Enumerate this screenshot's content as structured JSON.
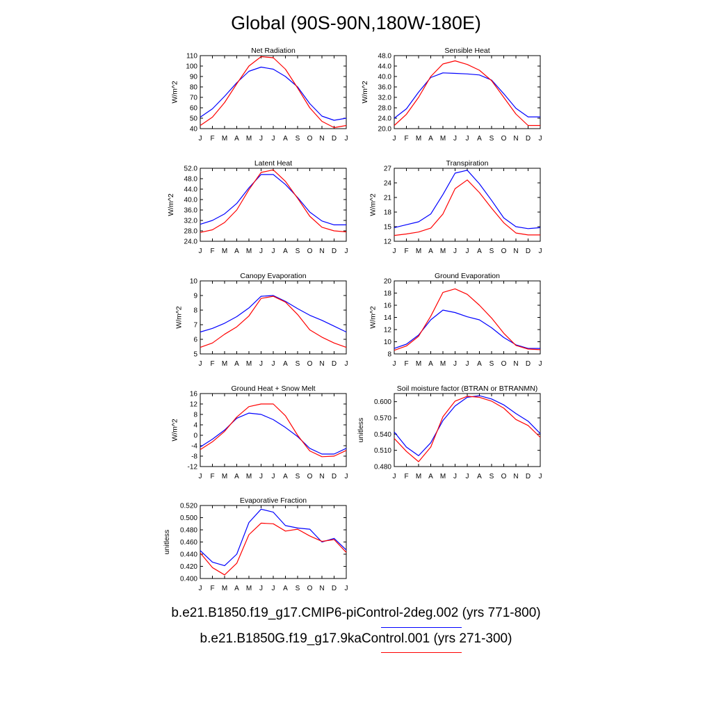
{
  "title": "Global (90S-90N,180W-180E)",
  "months": [
    "J",
    "F",
    "M",
    "A",
    "M",
    "J",
    "J",
    "A",
    "S",
    "O",
    "N",
    "D",
    "J"
  ],
  "legend": [
    {
      "label": "b.e21.B1850.f19_g17.CMIP6-piControl-2deg.002 (yrs 771-800)",
      "color": "#0000ff"
    },
    {
      "label": "b.e21.B1850G.f19_g17.9kaControl.001 (yrs 271-300)",
      "color": "#ff0000"
    }
  ],
  "chart_data": [
    {
      "type": "line",
      "title": "Net Radiation",
      "ylabel": "W/m^2",
      "ylim": [
        40,
        110
      ],
      "yticks": [
        40,
        50,
        60,
        70,
        80,
        90,
        100,
        110
      ],
      "yticklabels": [
        "40",
        "50",
        "60",
        "70",
        "80",
        "90",
        "100",
        "110"
      ],
      "series": [
        {
          "color": "#0000ff",
          "values": [
            51,
            59,
            71,
            84,
            95,
            99,
            97,
            90,
            80,
            64,
            52,
            48,
            50
          ]
        },
        {
          "color": "#ff0000",
          "values": [
            43,
            51,
            65,
            83,
            100,
            109,
            108,
            97,
            79,
            60,
            47,
            41,
            43
          ]
        }
      ]
    },
    {
      "type": "line",
      "title": "Sensible Heat",
      "ylabel": "W/m^2",
      "ylim": [
        20,
        48
      ],
      "yticks": [
        20,
        24,
        28,
        32,
        36,
        40,
        44,
        48
      ],
      "yticklabels": [
        "20.0",
        "24.0",
        "28.0",
        "32.0",
        "36.0",
        "40.0",
        "44.0",
        "48.0"
      ],
      "series": [
        {
          "color": "#0000ff",
          "values": [
            24,
            27.6,
            34,
            39.6,
            41.4,
            41.2,
            41,
            40.6,
            38.6,
            33.4,
            27.8,
            24.5,
            24.5
          ]
        },
        {
          "color": "#ff0000",
          "values": [
            21.2,
            25.5,
            32,
            40,
            44.8,
            46,
            44.6,
            42.4,
            38.4,
            32,
            25.6,
            21.2,
            21.2
          ]
        }
      ]
    },
    {
      "type": "line",
      "title": "Latent Heat",
      "ylabel": "W/m^2",
      "ylim": [
        24,
        52
      ],
      "yticks": [
        24,
        28,
        32,
        36,
        40,
        44,
        48,
        52
      ],
      "yticklabels": [
        "24.0",
        "28.0",
        "32.0",
        "36.0",
        "40.0",
        "44.0",
        "48.0",
        "52.0"
      ],
      "series": [
        {
          "color": "#0000ff",
          "values": [
            30.5,
            32,
            34.5,
            38.5,
            44.5,
            49.6,
            49.6,
            45.8,
            40.8,
            35.2,
            31.8,
            30.3,
            30.3
          ]
        },
        {
          "color": "#ff0000",
          "values": [
            27.4,
            28.4,
            31.2,
            36,
            43.8,
            50.4,
            51.4,
            47,
            40.5,
            33.6,
            29.4,
            28,
            27.6
          ]
        }
      ]
    },
    {
      "type": "line",
      "title": "Transpiration",
      "ylabel": "W/m^2",
      "ylim": [
        12,
        27
      ],
      "yticks": [
        12,
        15,
        18,
        21,
        24,
        27
      ],
      "yticklabels": [
        "12",
        "15",
        "18",
        "21",
        "24",
        "27"
      ],
      "series": [
        {
          "color": "#0000ff",
          "values": [
            14.8,
            15.4,
            16,
            17.6,
            21.6,
            26,
            26.6,
            23.8,
            20.4,
            16.8,
            15,
            14.6,
            14.8
          ]
        },
        {
          "color": "#ff0000",
          "values": [
            13.2,
            13.5,
            13.9,
            14.7,
            17.6,
            22.8,
            24.6,
            22,
            18.8,
            15.8,
            13.7,
            13.3,
            13.3
          ]
        }
      ]
    },
    {
      "type": "line",
      "title": "Canopy Evaporation",
      "ylabel": "W/m^2",
      "ylim": [
        5,
        10
      ],
      "yticks": [
        5,
        6,
        7,
        8,
        9,
        10
      ],
      "yticklabels": [
        "5",
        "6",
        "7",
        "8",
        "9",
        "10"
      ],
      "series": [
        {
          "color": "#0000ff",
          "values": [
            6.5,
            6.75,
            7.1,
            7.55,
            8.15,
            8.95,
            9.0,
            8.6,
            8.1,
            7.65,
            7.3,
            6.9,
            6.5
          ]
        },
        {
          "color": "#ff0000",
          "values": [
            5.45,
            5.75,
            6.35,
            6.85,
            7.6,
            8.8,
            8.95,
            8.55,
            7.7,
            6.65,
            6.15,
            5.75,
            5.45
          ]
        }
      ]
    },
    {
      "type": "line",
      "title": "Ground Evaporation",
      "ylabel": "W/m^2",
      "ylim": [
        8,
        20
      ],
      "yticks": [
        8,
        10,
        12,
        14,
        16,
        18,
        20
      ],
      "yticklabels": [
        "8",
        "10",
        "12",
        "14",
        "16",
        "18",
        "20"
      ],
      "series": [
        {
          "color": "#0000ff",
          "values": [
            8.9,
            9.6,
            11.1,
            13.6,
            15.2,
            14.8,
            14.1,
            13.6,
            12.3,
            10.7,
            9.5,
            8.9,
            8.9
          ]
        },
        {
          "color": "#ff0000",
          "values": [
            8.6,
            9.3,
            10.9,
            14.2,
            18.1,
            18.7,
            17.8,
            16,
            13.9,
            11.4,
            9.4,
            8.8,
            8.7
          ]
        }
      ]
    },
    {
      "type": "line",
      "title": "Ground Heat + Snow Melt",
      "ylabel": "W/m^2",
      "ylim": [
        -12,
        16
      ],
      "yticks": [
        -12,
        -8,
        -4,
        0,
        4,
        8,
        12,
        16
      ],
      "yticklabels": [
        "-12",
        "-8",
        "-4",
        "0",
        "4",
        "8",
        "12",
        "16"
      ],
      "series": [
        {
          "color": "#0000ff",
          "values": [
            -4.5,
            -1.5,
            2,
            6.5,
            8.5,
            8,
            6,
            3,
            -0.5,
            -5,
            -7.2,
            -7.2,
            -5
          ]
        },
        {
          "color": "#ff0000",
          "values": [
            -5.5,
            -2.5,
            1.5,
            7,
            11,
            12,
            12,
            7.5,
            0,
            -6,
            -8.2,
            -8,
            -5.8
          ]
        }
      ]
    },
    {
      "type": "line",
      "title": "Soil moisture factor (BTRAN or BTRANMN)",
      "ylabel": "unitless",
      "ylim": [
        0.48,
        0.615
      ],
      "yticks": [
        0.48,
        0.51,
        0.54,
        0.57,
        0.6
      ],
      "yticklabels": [
        "0.480",
        "0.510",
        "0.540",
        "0.570",
        "0.600"
      ],
      "series": [
        {
          "color": "#0000ff",
          "values": [
            0.544,
            0.516,
            0.5,
            0.524,
            0.565,
            0.592,
            0.608,
            0.611,
            0.605,
            0.594,
            0.578,
            0.564,
            0.541
          ]
        },
        {
          "color": "#ff0000",
          "values": [
            0.532,
            0.508,
            0.489,
            0.516,
            0.572,
            0.601,
            0.61,
            0.608,
            0.601,
            0.588,
            0.567,
            0.556,
            0.534
          ]
        }
      ]
    },
    {
      "type": "line",
      "title": "Evaporative Fraction",
      "ylabel": "unitless",
      "ylim": [
        0.4,
        0.52
      ],
      "yticks": [
        0.4,
        0.42,
        0.44,
        0.46,
        0.48,
        0.5,
        0.52
      ],
      "yticklabels": [
        "0.400",
        "0.420",
        "0.440",
        "0.460",
        "0.480",
        "0.500",
        "0.520"
      ],
      "series": [
        {
          "color": "#0000ff",
          "values": [
            0.446,
            0.427,
            0.421,
            0.44,
            0.492,
            0.514,
            0.509,
            0.487,
            0.483,
            0.481,
            0.46,
            0.466,
            0.447
          ]
        },
        {
          "color": "#ff0000",
          "values": [
            0.442,
            0.418,
            0.406,
            0.425,
            0.472,
            0.491,
            0.49,
            0.478,
            0.481,
            0.47,
            0.461,
            0.464,
            0.443
          ]
        }
      ]
    }
  ]
}
